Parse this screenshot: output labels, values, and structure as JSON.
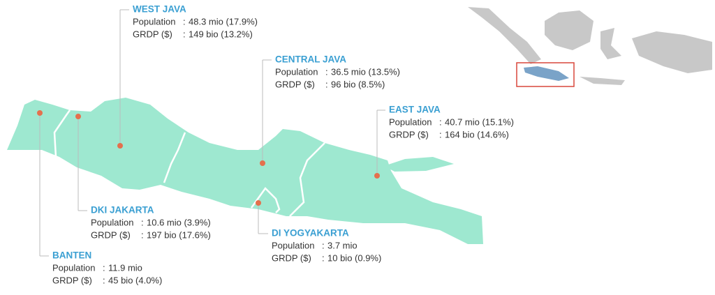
{
  "labels": {
    "population": "Population",
    "grdp": "GRDP ($)",
    "separator": ":"
  },
  "regions": [
    {
      "name": "WEST JAVA",
      "population": "48.3 mio (17.9%)",
      "grdp": "149 bio (13.2%)"
    },
    {
      "name": "CENTRAL JAVA",
      "population": "36.5 mio (13.5%)",
      "grdp": "96 bio (8.5%)"
    },
    {
      "name": "EAST JAVA",
      "population": "40.7 mio (15.1%)",
      "grdp": "164 bio (14.6%)"
    },
    {
      "name": "DKI JAKARTA",
      "population": "10.6 mio (3.9%)",
      "grdp": "197 bio (17.6%)"
    },
    {
      "name": "DI YOGYAKARTA",
      "population": "3.7 mio",
      "grdp": "10 bio (0.9%)"
    },
    {
      "name": "BANTEN",
      "population": "11.9 mio",
      "grdp": "45 bio (4.0%)"
    }
  ]
}
